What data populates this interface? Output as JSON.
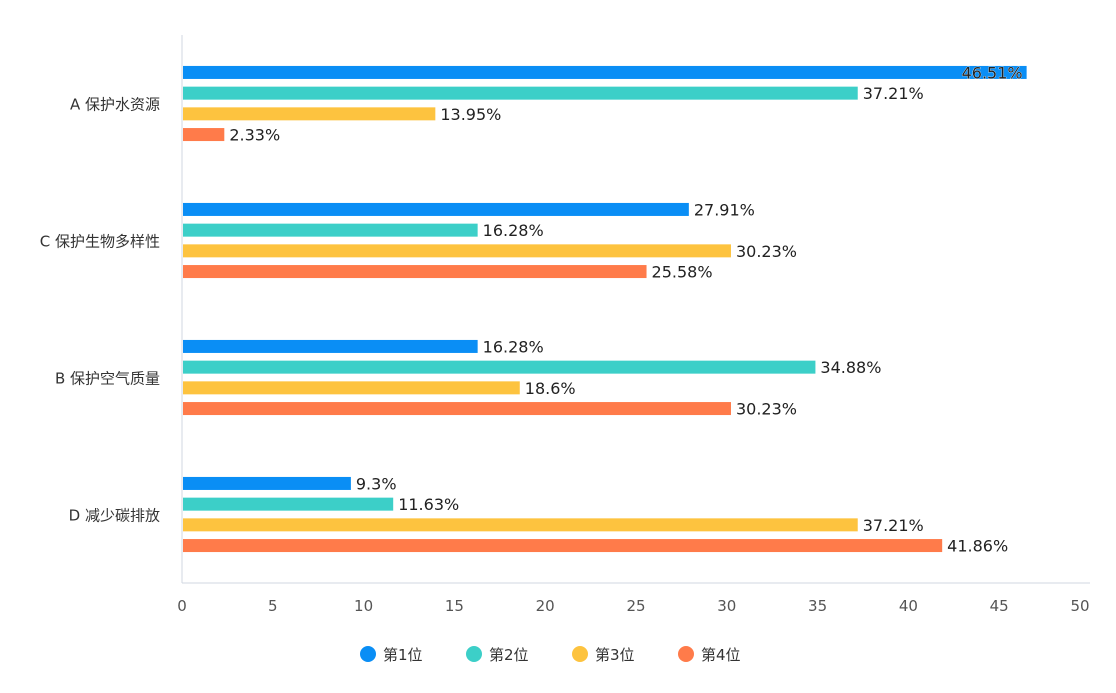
{
  "chart_data": {
    "type": "bar",
    "orientation": "horizontal",
    "categories": [
      "A 保护水资源",
      "C 保护生物多样性",
      "B 保护空气质量",
      "D 减少碳排放"
    ],
    "series": [
      {
        "name": "第1位",
        "color": "#0a8ef5",
        "values": [
          46.51,
          27.91,
          16.28,
          9.3
        ]
      },
      {
        "name": "第2位",
        "color": "#3ccfc8",
        "values": [
          37.21,
          16.28,
          34.88,
          11.63
        ]
      },
      {
        "name": "第3位",
        "color": "#fdc33f",
        "values": [
          13.95,
          30.23,
          18.6,
          37.21
        ]
      },
      {
        "name": "第4位",
        "color": "#ff7b4a",
        "values": [
          2.33,
          25.58,
          30.23,
          41.86
        ]
      }
    ],
    "value_suffix": "%",
    "xlim": [
      0,
      50
    ],
    "xticks": [
      0,
      5,
      10,
      15,
      20,
      25,
      30,
      35,
      40,
      45,
      50
    ],
    "grid": false,
    "legend_position": "bottom",
    "title": "",
    "xlabel": "",
    "ylabel": ""
  }
}
